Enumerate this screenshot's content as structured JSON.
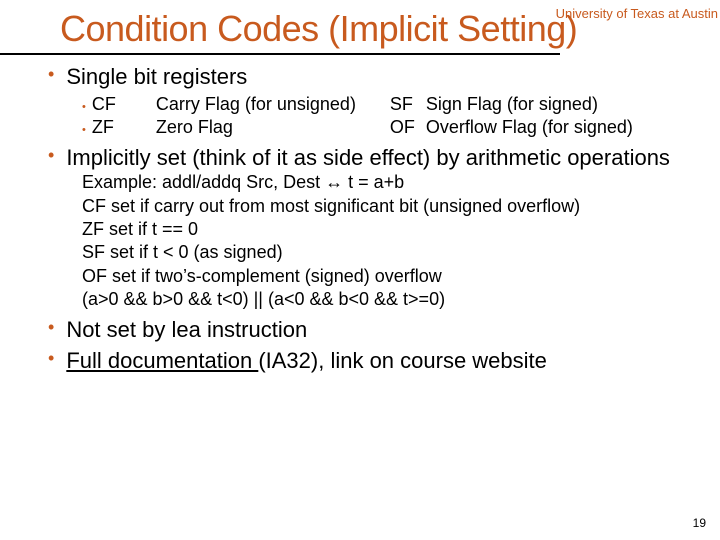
{
  "colors": {
    "accent": "#c85a1e",
    "text": "#000000",
    "background": "#ffffff"
  },
  "typography": {
    "title_fontsize": 36,
    "body_fontsize": 22,
    "sub_fontsize": 18,
    "header_label_fontsize": 13,
    "page_number_fontsize": 12
  },
  "header": {
    "institution": "University of Texas at Austin"
  },
  "slide": {
    "title": "Condition Codes (Implicit Setting)",
    "page_number": "19"
  },
  "bullets": {
    "b1": "Single bit registers",
    "b2": "Implicitly set (think of it as side effect) by arithmetic operations",
    "b3": "Not set by lea instruction",
    "b4_prefix": "Full documentation ",
    "b4_suffix": "(IA32), link on course website"
  },
  "flags": {
    "row1": {
      "code1": "CF",
      "desc1": "Carry Flag (for unsigned)",
      "code2": "SF",
      "desc2": "Sign Flag (for signed)"
    },
    "row2": {
      "code1": "ZF",
      "desc1": "Zero Flag",
      "code2": "OF",
      "desc2": "Overflow Flag (for signed)"
    }
  },
  "details": {
    "d1": "Example: addl/addq Src, Dest ↔ t = a+b",
    "d2": "CF set if carry out from most significant bit (unsigned overflow)",
    "d3": "ZF set if t == 0",
    "d4": "SF set if t < 0 (as signed)",
    "d5": "OF set if two’s-complement (signed) overflow",
    "d6": "(a>0 && b>0 && t<0) || (a<0 && b<0 && t>=0)"
  }
}
